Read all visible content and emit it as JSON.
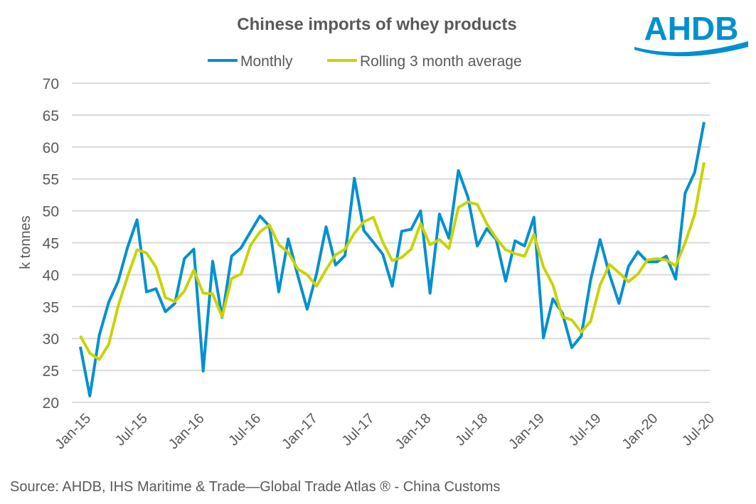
{
  "logo_text": "AHDB",
  "source": "Source: AHDB, IHS Maritime & Trade—Global Trade Atlas ® - China Customs",
  "colors": {
    "monthly": "#0090D0",
    "rolling": "#C8D400",
    "grid": "#D9D9D9",
    "text": "#595959",
    "logo": "#0090D0"
  },
  "chart_data": {
    "type": "line",
    "title": "Chinese imports of whey products",
    "ylabel": "k tonnes",
    "xlabel": "",
    "ylim": [
      20,
      70
    ],
    "yticks": [
      20,
      25,
      30,
      35,
      40,
      45,
      50,
      55,
      60,
      65,
      70
    ],
    "grid": true,
    "legend_position": "top",
    "x_tick_labels": [
      "Jan-15",
      "Jul-15",
      "Jan-16",
      "Jul-16",
      "Jan-17",
      "Jul-17",
      "Jan-18",
      "Jul-18",
      "Jan-19",
      "Jul-19",
      "Jan-20",
      "Jul-20"
    ],
    "x_start": "Jan-15",
    "n_months": 67,
    "series": [
      {
        "name": "Monthly",
        "color": "#0090D0",
        "values": [
          28.7,
          21.0,
          30.5,
          35.7,
          39.0,
          44.3,
          48.6,
          37.3,
          37.8,
          34.2,
          35.5,
          42.5,
          44.0,
          24.9,
          42.1,
          33.3,
          42.9,
          44.2,
          46.7,
          49.2,
          47.6,
          37.3,
          45.6,
          39.9,
          34.6,
          40.2,
          47.5,
          41.5,
          43.0,
          55.1,
          46.9,
          45.1,
          43.2,
          38.2,
          46.8,
          47.1,
          50.0,
          37.1,
          49.5,
          45.7,
          56.3,
          52.2,
          44.5,
          47.2,
          45.5,
          39.0,
          45.3,
          44.5,
          49.0,
          30.1,
          36.2,
          34.0,
          28.6,
          30.4,
          39.2,
          45.5,
          40.0,
          35.5,
          41.3,
          43.6,
          42.0,
          42.0,
          42.9,
          39.3,
          52.8,
          56.0,
          63.9
        ]
      },
      {
        "name": "Rolling 3 month average",
        "color": "#C8D400",
        "values": [
          30.4,
          27.7,
          26.7,
          29.1,
          35.1,
          39.7,
          43.9,
          43.4,
          41.2,
          36.4,
          35.8,
          37.4,
          40.7,
          37.1,
          37.0,
          33.4,
          39.4,
          40.1,
          44.6,
          46.7,
          47.8,
          44.7,
          43.5,
          40.9,
          40.0,
          38.2,
          40.8,
          43.1,
          44.0,
          46.5,
          48.3,
          49.0,
          45.1,
          42.2,
          42.7,
          44.0,
          48.0,
          44.7,
          45.5,
          44.1,
          50.5,
          51.4,
          51.0,
          48.0,
          45.7,
          43.9,
          43.3,
          42.9,
          46.3,
          41.2,
          38.4,
          33.4,
          32.9,
          31.0,
          32.7,
          38.4,
          41.6,
          40.3,
          38.9,
          40.1,
          42.3,
          42.5,
          42.3,
          41.4,
          45.0,
          49.4,
          57.6
        ]
      }
    ]
  }
}
